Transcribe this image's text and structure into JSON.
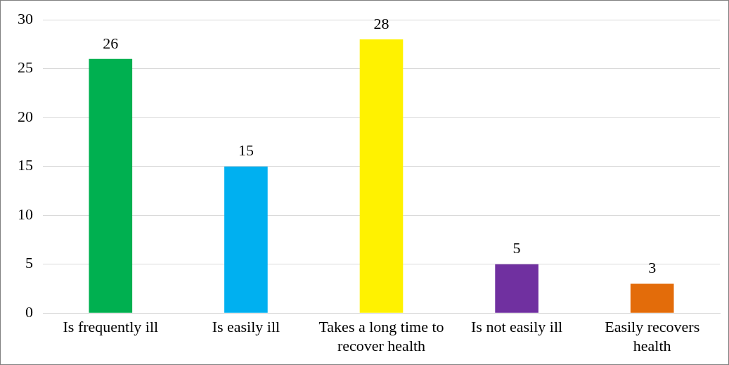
{
  "chart_data": {
    "type": "bar",
    "categories": [
      "Is frequently ill",
      "Is easily ill",
      "Takes a long time to recover health",
      "Is not easily ill",
      "Easily recovers health"
    ],
    "values": [
      26,
      15,
      28,
      5,
      3
    ],
    "colors": [
      "#00b050",
      "#00b0f0",
      "#fff200",
      "#7030a0",
      "#e36c0a"
    ],
    "ylim": [
      0,
      30
    ],
    "yticks": [
      0,
      5,
      10,
      15,
      20,
      25,
      30
    ],
    "grid": "y",
    "data_labels": true,
    "legend": false
  }
}
